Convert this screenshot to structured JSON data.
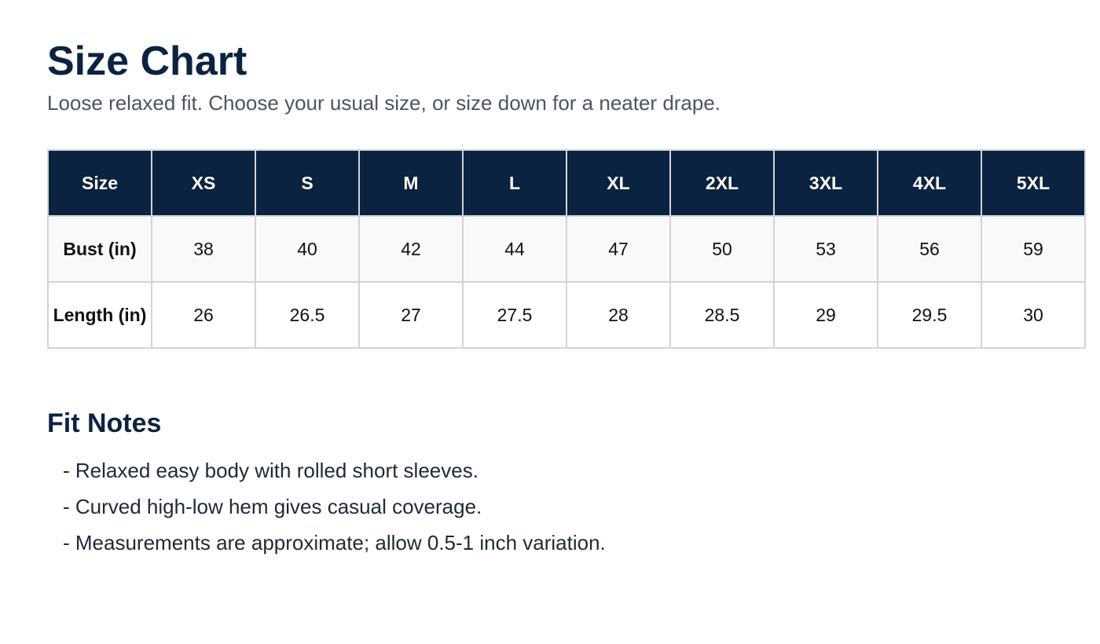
{
  "header": {
    "title": "Size Chart",
    "subtitle": "Loose relaxed fit. Choose your usual size, or size down for a neater drape."
  },
  "table": {
    "columns": [
      "Size",
      "XS",
      "S",
      "M",
      "L",
      "XL",
      "2XL",
      "3XL",
      "4XL",
      "5XL"
    ],
    "rows": [
      [
        "Bust (in)",
        38,
        40,
        42,
        44,
        47,
        50,
        53,
        56,
        59
      ],
      [
        "Length (in)",
        26,
        26.5,
        27,
        27.5,
        28,
        28.5,
        29,
        29.5,
        30
      ]
    ]
  },
  "notes": {
    "title": "Fit Notes",
    "items": [
      "- Relaxed easy body with rolled short sleeves.",
      "- Curved high-low hem gives casual coverage.",
      "- Measurements are approximate; allow 0.5-1 inch variation."
    ]
  }
}
